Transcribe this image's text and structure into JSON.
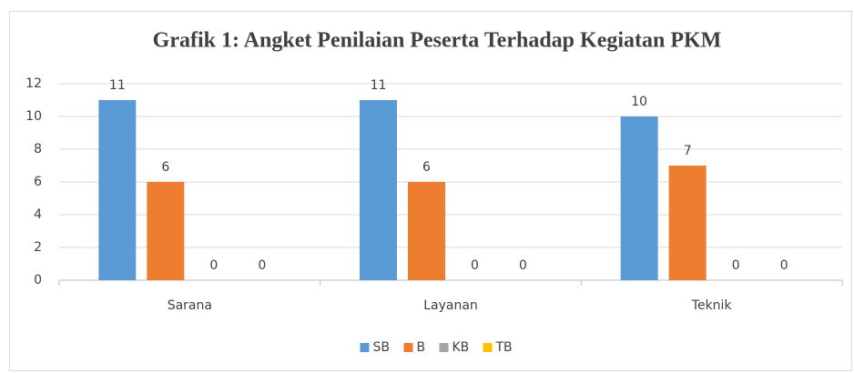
{
  "chart_data": {
    "type": "bar",
    "title": "Grafik 1: Angket Penilaian Peserta Terhadap Kegiatan PKM",
    "categories": [
      "Sarana",
      "Layanan",
      "Teknik"
    ],
    "series": [
      {
        "name": "SB",
        "color": "#5b9bd5",
        "values": [
          11,
          11,
          10
        ]
      },
      {
        "name": "B",
        "color": "#ed7d31",
        "values": [
          6,
          6,
          7
        ]
      },
      {
        "name": "KB",
        "color": "#a5a5a5",
        "values": [
          0,
          0,
          0
        ]
      },
      {
        "name": "TB",
        "color": "#ffc000",
        "values": [
          0,
          0,
          0
        ]
      }
    ],
    "ylim": [
      0,
      12
    ],
    "yticks": [
      0,
      2,
      4,
      6,
      8,
      10,
      12
    ],
    "grid": true,
    "legend": "bottom"
  }
}
